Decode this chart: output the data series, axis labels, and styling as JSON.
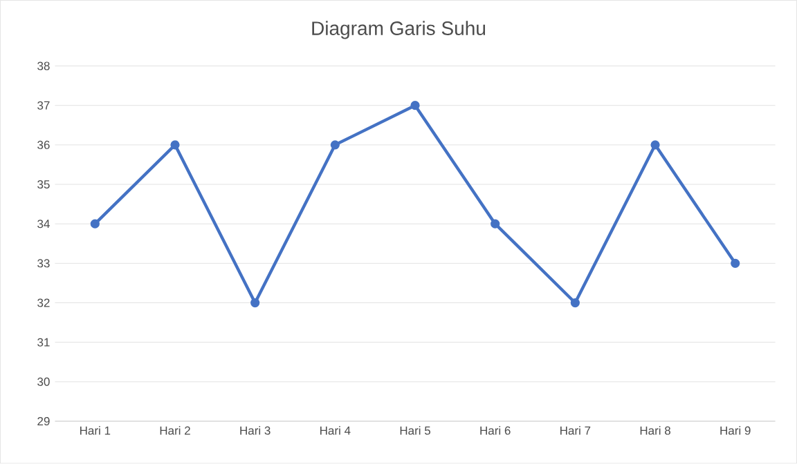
{
  "chart_data": {
    "type": "line",
    "title": "Diagram Garis Suhu",
    "categories": [
      "Hari 1",
      "Hari 2",
      "Hari 3",
      "Hari 4",
      "Hari 5",
      "Hari 6",
      "Hari 7",
      "Hari 8",
      "Hari 9"
    ],
    "series": [
      {
        "color": "#4472c4",
        "values": [
          34,
          36,
          32,
          36,
          37,
          34,
          32,
          36,
          33
        ]
      }
    ],
    "ylim": [
      29,
      38
    ],
    "yticks": [
      29,
      30,
      31,
      32,
      33,
      34,
      35,
      36,
      37,
      38
    ],
    "grid": "y",
    "marker": "circle",
    "line_style": "solid"
  }
}
